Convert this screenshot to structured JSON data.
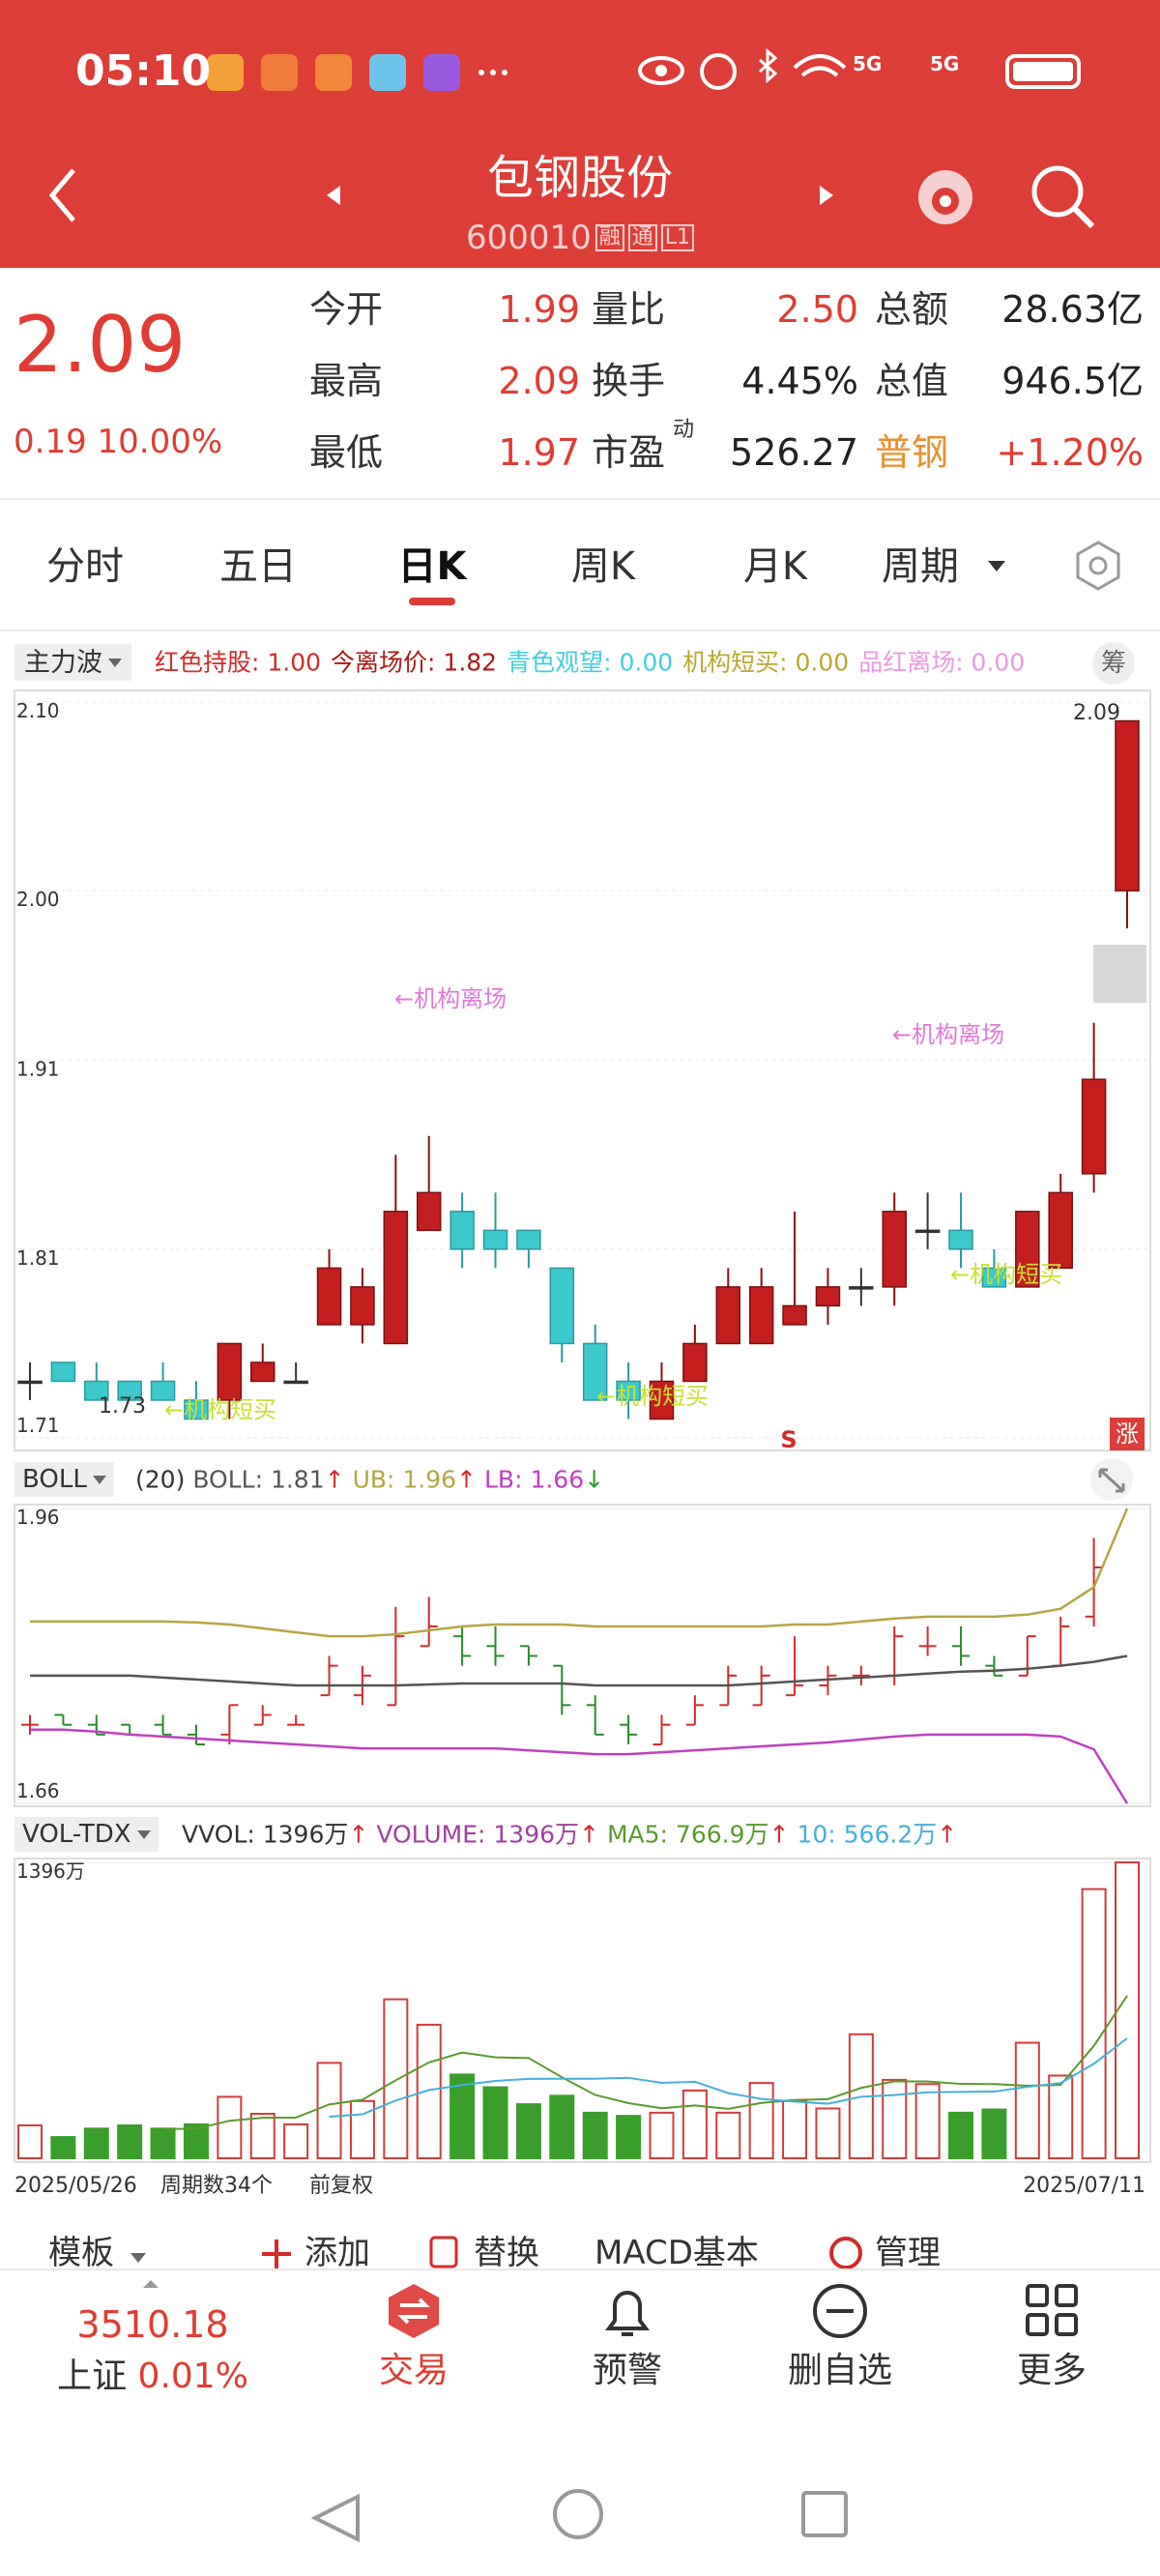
{
  "status_bar": {
    "time": "05:10",
    "network": [
      "5G",
      "5G"
    ]
  },
  "header": {
    "title": "包钢股份",
    "code": "600010",
    "badges": [
      "融",
      "通",
      "L1"
    ]
  },
  "quote": {
    "price": "2.09",
    "change": "0.19",
    "change_pct": "10.00%",
    "fields": [
      [
        {
          "label": "今开",
          "value": "1.99",
          "color": "#e03c33"
        },
        {
          "label": "量比",
          "value": "2.50",
          "color": "#e03c33"
        },
        {
          "label": "总额",
          "value": "28.63亿",
          "color": "#222222"
        }
      ],
      [
        {
          "label": "最高",
          "value": "2.09",
          "color": "#e03c33"
        },
        {
          "label": "换手",
          "value": "4.45%",
          "color": "#222222"
        },
        {
          "label": "总值",
          "value": "946.5亿",
          "color": "#222222"
        }
      ],
      [
        {
          "label": "最低",
          "value": "1.97",
          "color": "#e03c33"
        },
        {
          "label": "市盈",
          "sup": "动",
          "value": "526.27",
          "color": "#222222"
        },
        {
          "label": "普钢",
          "label_color": "#e8902a",
          "value": "+1.20%",
          "color": "#e03c33"
        }
      ]
    ]
  },
  "tabs": {
    "items": [
      "分时",
      "五日",
      "日K",
      "周K",
      "月K",
      "周期"
    ],
    "active": 2
  },
  "indicator": {
    "name": "主力波",
    "button": "筹",
    "items": [
      {
        "text": "红色持股: 1.00",
        "color": "#d42a2a"
      },
      {
        "text": "今离场价: 1.82",
        "color": "#b01818"
      },
      {
        "text": "青色观望: 0.00",
        "color": "#3fd0e0"
      },
      {
        "text": "机构短买: 0.00",
        "color": "#b8a830"
      },
      {
        "text": "品红离场: 0.00",
        "color": "#e89ae0"
      }
    ]
  },
  "price_chart": {
    "type": "candlestick",
    "ylim": [
      1.71,
      2.1
    ],
    "yticks": [
      {
        "value": 2.1,
        "label": "2.10"
      },
      {
        "value": 2,
        "label": "2.00"
      },
      1.91,
      1.81,
      1.71
    ],
    "up_color": "#c41e1e",
    "down_color": "#3cc8cc",
    "candles": [
      {
        "o": 1.74,
        "h": 1.75,
        "l": 1.73,
        "c": 1.74
      },
      {
        "o": 1.75,
        "h": 1.75,
        "l": 1.74,
        "c": 1.74
      },
      {
        "o": 1.74,
        "h": 1.75,
        "l": 1.73,
        "c": 1.73
      },
      {
        "o": 1.74,
        "h": 1.74,
        "l": 1.73,
        "c": 1.73
      },
      {
        "o": 1.74,
        "h": 1.75,
        "l": 1.73,
        "c": 1.73
      },
      {
        "o": 1.73,
        "h": 1.74,
        "l": 1.72,
        "c": 1.72
      },
      {
        "o": 1.73,
        "h": 1.76,
        "l": 1.72,
        "c": 1.76
      },
      {
        "o": 1.74,
        "h": 1.76,
        "l": 1.74,
        "c": 1.75
      },
      {
        "o": 1.74,
        "h": 1.75,
        "l": 1.74,
        "c": 1.74
      },
      {
        "o": 1.77,
        "h": 1.81,
        "l": 1.77,
        "c": 1.8
      },
      {
        "o": 1.77,
        "h": 1.8,
        "l": 1.76,
        "c": 1.79
      },
      {
        "o": 1.76,
        "h": 1.86,
        "l": 1.76,
        "c": 1.83
      },
      {
        "o": 1.82,
        "h": 1.87,
        "l": 1.82,
        "c": 1.84
      },
      {
        "o": 1.83,
        "h": 1.84,
        "l": 1.8,
        "c": 1.81
      },
      {
        "o": 1.82,
        "h": 1.84,
        "l": 1.8,
        "c": 1.81
      },
      {
        "o": 1.82,
        "h": 1.82,
        "l": 1.8,
        "c": 1.81
      },
      {
        "o": 1.8,
        "h": 1.8,
        "l": 1.75,
        "c": 1.76
      },
      {
        "o": 1.76,
        "h": 1.77,
        "l": 1.73,
        "c": 1.73
      },
      {
        "o": 1.74,
        "h": 1.75,
        "l": 1.72,
        "c": 1.73
      },
      {
        "o": 1.72,
        "h": 1.75,
        "l": 1.72,
        "c": 1.74
      },
      {
        "o": 1.74,
        "h": 1.77,
        "l": 1.74,
        "c": 1.76
      },
      {
        "o": 1.76,
        "h": 1.8,
        "l": 1.76,
        "c": 1.79
      },
      {
        "o": 1.76,
        "h": 1.8,
        "l": 1.76,
        "c": 1.79
      },
      {
        "o": 1.77,
        "h": 1.83,
        "l": 1.77,
        "c": 1.78
      },
      {
        "o": 1.78,
        "h": 1.8,
        "l": 1.77,
        "c": 1.79
      },
      {
        "o": 1.79,
        "h": 1.8,
        "l": 1.78,
        "c": 1.79
      },
      {
        "o": 1.79,
        "h": 1.84,
        "l": 1.78,
        "c": 1.83
      },
      {
        "o": 1.82,
        "h": 1.84,
        "l": 1.81,
        "c": 1.82
      },
      {
        "o": 1.82,
        "h": 1.84,
        "l": 1.8,
        "c": 1.81
      },
      {
        "o": 1.8,
        "h": 1.81,
        "l": 1.79,
        "c": 1.79
      },
      {
        "o": 1.79,
        "h": 1.83,
        "l": 1.79,
        "c": 1.83
      },
      {
        "o": 1.8,
        "h": 1.85,
        "l": 1.8,
        "c": 1.84
      },
      {
        "o": 1.85,
        "h": 1.93,
        "l": 1.84,
        "c": 1.9
      },
      {
        "o": 2.0,
        "h": 2.09,
        "l": 1.98,
        "c": 2.09
      }
    ],
    "annotations": [
      {
        "text": "←机构离场",
        "color": "#e07ad8"
      },
      {
        "text": "←机构离场",
        "color": "#e07ad8"
      },
      {
        "text": "←机构短买",
        "color": "#c8e030"
      },
      {
        "text": "←机构短买",
        "color": "#c8e030"
      },
      {
        "text": "←机构短买",
        "color": "#c8e030"
      }
    ],
    "high_label": "2.09",
    "low_label": "1.73",
    "signal": "S",
    "badge": "涨"
  },
  "boll_chart": {
    "type": "line",
    "name": "BOLL",
    "period": "(20)",
    "ylim": [
      1.66,
      1.96
    ],
    "yticks": [
      1.96,
      1.66
    ],
    "series": [
      {
        "legend": "BOLL: 1.81",
        "arrow": "↑",
        "arrow_color": "#d42a2a",
        "color": "#555555",
        "values": [
          1.79,
          1.79,
          1.79,
          1.79,
          1.788,
          1.786,
          1.784,
          1.782,
          1.78,
          1.78,
          1.78,
          1.78,
          1.781,
          1.782,
          1.782,
          1.782,
          1.782,
          1.78,
          1.78,
          1.78,
          1.78,
          1.78,
          1.782,
          1.784,
          1.786,
          1.788,
          1.79,
          1.792,
          1.794,
          1.795,
          1.797,
          1.8,
          1.804,
          1.81
        ]
      },
      {
        "legend": "UB: 1.96",
        "arrow": "↑",
        "arrow_color": "#d42a2a",
        "color": "#b5a642",
        "values": [
          1.845,
          1.845,
          1.845,
          1.845,
          1.845,
          1.844,
          1.842,
          1.838,
          1.834,
          1.83,
          1.83,
          1.832,
          1.836,
          1.84,
          1.842,
          1.842,
          1.842,
          1.84,
          1.84,
          1.84,
          1.84,
          1.84,
          1.84,
          1.842,
          1.842,
          1.845,
          1.848,
          1.85,
          1.85,
          1.85,
          1.852,
          1.858,
          1.88,
          1.96
        ]
      },
      {
        "legend": "LB: 1.66",
        "arrow": "↓",
        "arrow_color": "#2a9a2a",
        "color": "#c040c0",
        "values": [
          1.735,
          1.735,
          1.733,
          1.73,
          1.728,
          1.726,
          1.724,
          1.722,
          1.72,
          1.718,
          1.716,
          1.716,
          1.716,
          1.716,
          1.716,
          1.714,
          1.712,
          1.71,
          1.71,
          1.712,
          1.714,
          1.716,
          1.718,
          1.72,
          1.722,
          1.725,
          1.728,
          1.73,
          1.73,
          1.73,
          1.73,
          1.728,
          1.715,
          1.66
        ]
      }
    ]
  },
  "volume_chart": {
    "type": "bar",
    "name": "VOL-TDX",
    "ylim": [
      0,
      1396
    ],
    "yticks": [
      {
        "value": 1396,
        "label": "1396万"
      }
    ],
    "up_color": "#d23b3b",
    "down_color": "#3a9e2a",
    "values": [
      155,
      100,
      140,
      155,
      140,
      160,
      290,
      210,
      160,
      450,
      270,
      750,
      630,
      395,
      335,
      255,
      295,
      215,
      200,
      215,
      320,
      215,
      355,
      270,
      235,
      585,
      370,
      350,
      215,
      230,
      545,
      390,
      1270,
      1396
    ],
    "legend": [
      {
        "text": "VVOL: 1396万",
        "arrow": "↑",
        "color": "#333333"
      },
      {
        "text": "VOLUME: 1396万",
        "arrow": "↑",
        "color": "#a040a0"
      }
    ],
    "series": [
      {
        "legend": "MA5: 766.9万",
        "arrow": "↑",
        "color": "#5a9a2a",
        "values": [
          null,
          null,
          null,
          null,
          138,
          139,
          177,
          191,
          192,
          254,
          276,
          368,
          452,
          499,
          476,
          473,
          382,
          299,
          260,
          236,
          249,
          233,
          261,
          275,
          279,
          332,
          363,
          362,
          351,
          350,
          342,
          346,
          530,
          766.9
        ]
      },
      {
        "legend": "10: 566.2万",
        "arrow": "↑",
        "color": "#45b0d8",
        "values": [
          null,
          null,
          null,
          null,
          null,
          null,
          null,
          null,
          null,
          196,
          207.5,
          272.5,
          321.5,
          345.5,
          365,
          374.5,
          375,
          375.5,
          379.5,
          356,
          361,
          307.5,
          280,
          267.5,
          257.5,
          290.5,
          298,
          311.5,
          313,
          314.5,
          337,
          354.5,
          446,
          566.2
        ]
      }
    ],
    "x_labels": {
      "start": "2025/05/26",
      "count": "周期数34个",
      "adjust": "前复权",
      "end": "2025/07/11"
    }
  },
  "toolbar": [
    "模板",
    "添加",
    "替换",
    "MACD基本",
    "管理"
  ],
  "bottom_nav": {
    "index": {
      "value": "3510.18",
      "name": "上证",
      "change": "0.01%"
    },
    "items": [
      "交易",
      "预警",
      "删自选",
      "更多"
    ]
  }
}
